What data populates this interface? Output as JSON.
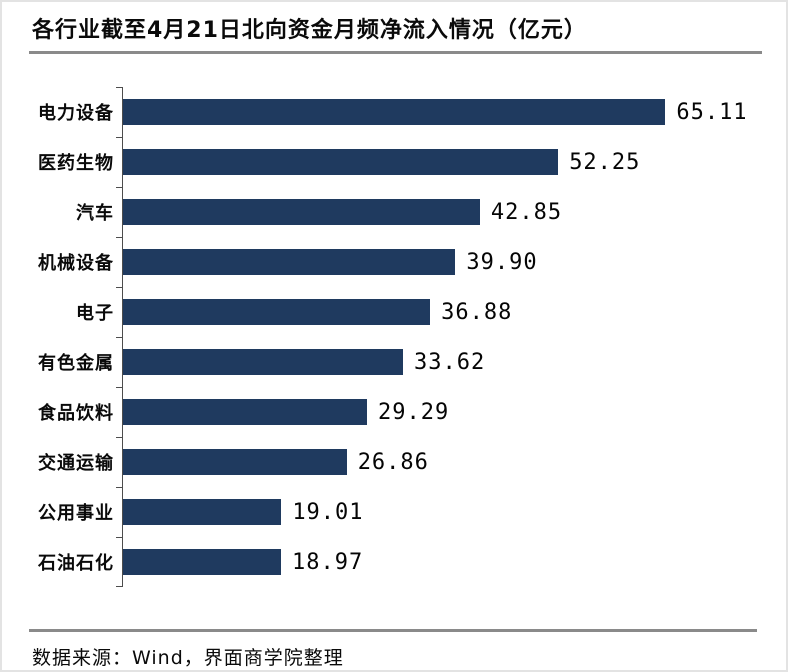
{
  "header": {
    "title": "各行业截至4月21日北向资金月频净流入情况（亿元）"
  },
  "footer": {
    "source_label": "数据来源：Wind，界面商学院整理"
  },
  "colors": {
    "bar": "#1F3A5F",
    "rule": "#8a8a8a",
    "axis": "#4d4d4d",
    "text": "#0a0a0a"
  },
  "chart_data": {
    "type": "bar",
    "orientation": "horizontal",
    "title": "各行业截至4月21日北向资金月频净流入情况（亿元）",
    "categories": [
      "电力设备",
      "医药生物",
      "汽车",
      "机械设备",
      "电子",
      "有色金属",
      "食品饮料",
      "交通运输",
      "公用事业",
      "石油石化"
    ],
    "values": [
      65.11,
      52.25,
      42.85,
      39.9,
      36.88,
      33.62,
      29.29,
      26.86,
      19.01,
      18.97
    ],
    "value_labels": [
      "65.11",
      "52.25",
      "42.85",
      "39.90",
      "36.88",
      "33.62",
      "29.29",
      "26.86",
      "19.01",
      "18.97"
    ],
    "xlabel": "",
    "ylabel": "",
    "xlim": [
      0,
      79.6
    ],
    "grid": false,
    "legend": false,
    "data_labels": "outside-end",
    "bar_color": "#1F3A5F",
    "sort": "descending"
  }
}
